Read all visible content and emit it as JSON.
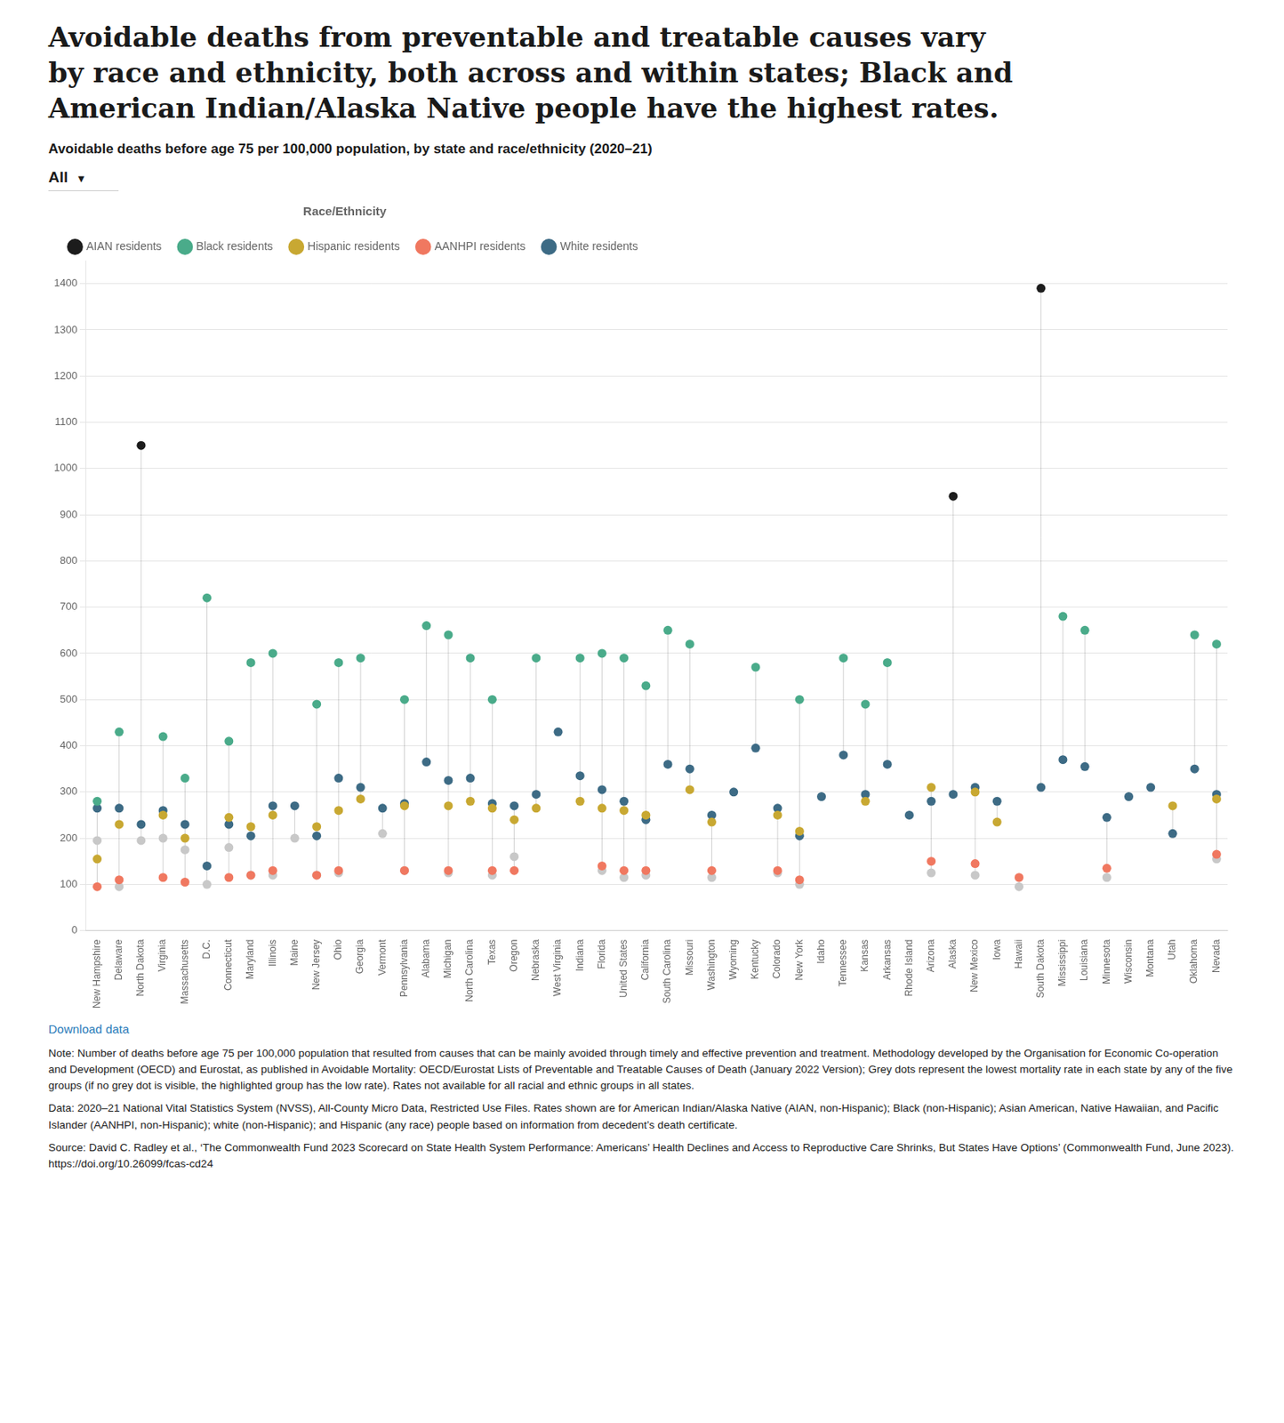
{
  "chart_data": {
    "type": "scatter",
    "title": "Avoidable deaths from preventable and treatable causes vary\nby race and ethnicity, both across and within states; Black and\nAmerican Indian/Alaska Native people have the highest rates.",
    "subtitle": "Avoidable deaths before age 75 per 100,000 population, by state and race/ethnicity (2020–21)",
    "filter_label": "All",
    "filter_arrow": "▼",
    "legend_title": "Race/Ethnicity",
    "categories": [
      "New Hampshire",
      "Delaware",
      "North Dakota",
      "Virginia",
      "Massachusetts",
      "D.C.",
      "Connecticut",
      "Maryland",
      "Illinois",
      "Maine",
      "New Jersey",
      "Ohio",
      "Georgia",
      "Vermont",
      "Pennsylvania",
      "Alabama",
      "Michigan",
      "North Carolina",
      "Texas",
      "Oregon",
      "Nebraska",
      "West Virginia",
      "Indiana",
      "Florida",
      "United States",
      "California",
      "South Carolina",
      "Missouri",
      "Washington",
      "Wyoming",
      "Kentucky",
      "Colorado",
      "New York",
      "Idaho",
      "Tennessee",
      "Kansas",
      "Arkansas",
      "Rhode Island",
      "Arizona",
      "Alaska",
      "New Mexico",
      "Iowa",
      "Hawaii",
      "South Dakota",
      "Mississippi",
      "Louisiana",
      "Minnesota",
      "Wisconsin",
      "Montana",
      "Utah",
      "Oklahoma",
      "Nevada"
    ],
    "series": [
      {
        "name": "AIAN residents",
        "color": "#1c1c1c",
        "values": [
          null,
          null,
          1050,
          null,
          null,
          null,
          null,
          null,
          null,
          null,
          null,
          null,
          null,
          null,
          null,
          null,
          null,
          null,
          null,
          null,
          null,
          null,
          null,
          null,
          null,
          null,
          null,
          null,
          null,
          null,
          null,
          null,
          null,
          null,
          null,
          null,
          null,
          null,
          null,
          940,
          null,
          null,
          null,
          1390,
          null,
          null,
          null,
          null,
          null,
          null,
          null,
          null
        ]
      },
      {
        "name": "Black residents",
        "color": "#4aab8a",
        "values": [
          280,
          430,
          null,
          420,
          330,
          720,
          410,
          580,
          600,
          null,
          490,
          580,
          590,
          null,
          500,
          660,
          640,
          590,
          500,
          null,
          590,
          null,
          590,
          600,
          590,
          530,
          650,
          620,
          null,
          null,
          570,
          null,
          500,
          null,
          590,
          490,
          580,
          null,
          null,
          null,
          null,
          null,
          null,
          null,
          680,
          650,
          null,
          null,
          null,
          null,
          640,
          620
        ]
      },
      {
        "name": "Hispanic residents",
        "color": "#c8a832",
        "values": [
          155,
          230,
          null,
          250,
          200,
          null,
          245,
          225,
          250,
          null,
          225,
          260,
          285,
          null,
          270,
          null,
          270,
          280,
          265,
          240,
          265,
          null,
          280,
          265,
          260,
          250,
          null,
          305,
          235,
          null,
          null,
          250,
          215,
          null,
          null,
          280,
          null,
          null,
          310,
          null,
          300,
          235,
          null,
          null,
          null,
          null,
          null,
          null,
          null,
          270,
          null,
          285
        ]
      },
      {
        "name": "AANHPI residents",
        "color": "#f07860",
        "values": [
          95,
          110,
          null,
          115,
          105,
          null,
          115,
          120,
          130,
          null,
          120,
          130,
          null,
          null,
          130,
          null,
          130,
          null,
          130,
          130,
          null,
          null,
          null,
          140,
          130,
          130,
          null,
          null,
          130,
          null,
          null,
          130,
          110,
          null,
          null,
          null,
          null,
          null,
          150,
          null,
          145,
          null,
          115,
          null,
          null,
          null,
          135,
          null,
          null,
          null,
          null,
          165
        ]
      },
      {
        "name": "White residents",
        "color": "#3d6b85",
        "values": [
          265,
          265,
          230,
          260,
          230,
          140,
          230,
          205,
          270,
          270,
          205,
          330,
          310,
          265,
          275,
          365,
          325,
          330,
          275,
          270,
          295,
          430,
          335,
          305,
          280,
          240,
          360,
          350,
          250,
          300,
          395,
          265,
          205,
          290,
          380,
          295,
          360,
          250,
          280,
          295,
          310,
          280,
          null,
          310,
          370,
          355,
          245,
          290,
          310,
          210,
          350,
          295
        ]
      },
      {
        "color": "#c8c8c8",
        "values": [
          195,
          95,
          195,
          200,
          175,
          100,
          180,
          120,
          120,
          200,
          120,
          125,
          null,
          210,
          130,
          null,
          125,
          null,
          120,
          160,
          null,
          null,
          null,
          130,
          115,
          120,
          null,
          null,
          115,
          null,
          null,
          125,
          100,
          null,
          null,
          null,
          null,
          null,
          125,
          null,
          120,
          null,
          95,
          null,
          null,
          null,
          115,
          null,
          null,
          null,
          null,
          155
        ]
      }
    ],
    "ylim": [
      0,
      1450
    ],
    "yticks": [
      0,
      100,
      200,
      300,
      400,
      500,
      600,
      700,
      800,
      900,
      1000,
      1100,
      1200,
      1300,
      1400
    ],
    "grid": "y",
    "legend": "top",
    "download_text": "Download data",
    "notes": [
      "Note: Number of deaths before age 75 per 100,000 population that resulted from causes that can be mainly avoided through timely and effective prevention and treatment. Methodology developed by the Organisation for Economic Co-operation and Development (OECD) and Eurostat, as published in Avoidable Mortality: OECD/Eurostat Lists of Preventable and Treatable Causes of Death (January 2022 Version); Grey dots represent the lowest mortality rate in each state by any of the five groups (if no grey dot is visible, the highlighted group has the low rate). Rates not available for all racial and ethnic groups in all states.",
      "Data: 2020–21 National Vital Statistics System (NVSS), All-County Micro Data, Restricted Use Files. Rates shown are for American Indian/Alaska Native (AIAN, non-Hispanic); Black (non-Hispanic); Asian American, Native Hawaiian, and Pacific Islander (AANHPI, non-Hispanic); white (non-Hispanic); and Hispanic (any race) people based on information from decedent’s death certificate.",
      "Source: David C. Radley et al., ‘The Commonwealth Fund 2023 Scorecard on State Health System Performance: Americans’ Health Declines and Access to Reproductive Care Shrinks, But States Have Options’ (Commonwealth Fund, June 2023). https://doi.org/10.26099/fcas-cd24"
    ]
  }
}
